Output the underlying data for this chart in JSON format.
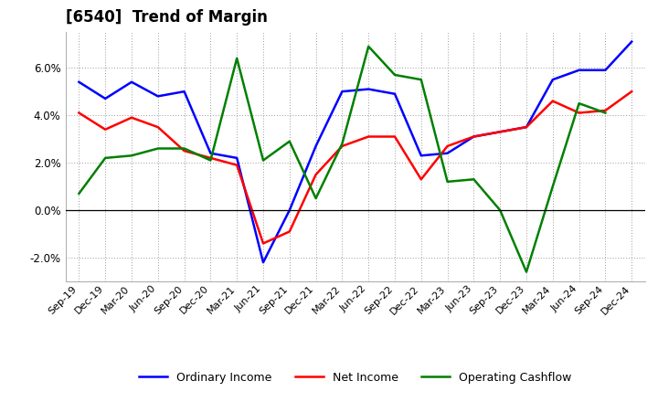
{
  "title": "[6540]  Trend of Margin",
  "x_labels": [
    "Sep-19",
    "Dec-19",
    "Mar-20",
    "Jun-20",
    "Sep-20",
    "Dec-20",
    "Mar-21",
    "Jun-21",
    "Sep-21",
    "Dec-21",
    "Mar-22",
    "Jun-22",
    "Sep-22",
    "Dec-22",
    "Mar-23",
    "Jun-23",
    "Sep-23",
    "Dec-23",
    "Mar-24",
    "Jun-24",
    "Sep-24",
    "Dec-24"
  ],
  "ordinary_income": [
    5.4,
    4.7,
    5.4,
    4.8,
    5.0,
    2.4,
    2.2,
    -2.2,
    0.0,
    2.7,
    5.0,
    5.1,
    4.9,
    2.3,
    2.4,
    3.1,
    3.3,
    3.5,
    5.5,
    5.9,
    5.9,
    7.1
  ],
  "net_income": [
    4.1,
    3.4,
    3.9,
    3.5,
    2.5,
    2.2,
    1.9,
    -1.4,
    -0.9,
    1.5,
    2.7,
    3.1,
    3.1,
    1.3,
    2.7,
    3.1,
    3.3,
    3.5,
    4.6,
    4.1,
    4.2,
    5.0
  ],
  "operating_cashflow": [
    0.7,
    2.2,
    2.3,
    2.6,
    2.6,
    2.1,
    6.4,
    2.1,
    2.9,
    0.5,
    2.8,
    6.9,
    5.7,
    5.5,
    1.2,
    1.3,
    0.0,
    -2.6,
    1.0,
    4.5,
    4.1,
    null
  ],
  "ordinary_income_color": "#0000FF",
  "net_income_color": "#FF0000",
  "operating_cashflow_color": "#008000",
  "ylim": [
    -3.0,
    7.5
  ],
  "yticks": [
    -2.0,
    0.0,
    2.0,
    4.0,
    6.0
  ],
  "background_color": "#FFFFFF",
  "grid_color": "#999999",
  "legend_labels": [
    "Ordinary Income",
    "Net Income",
    "Operating Cashflow"
  ]
}
